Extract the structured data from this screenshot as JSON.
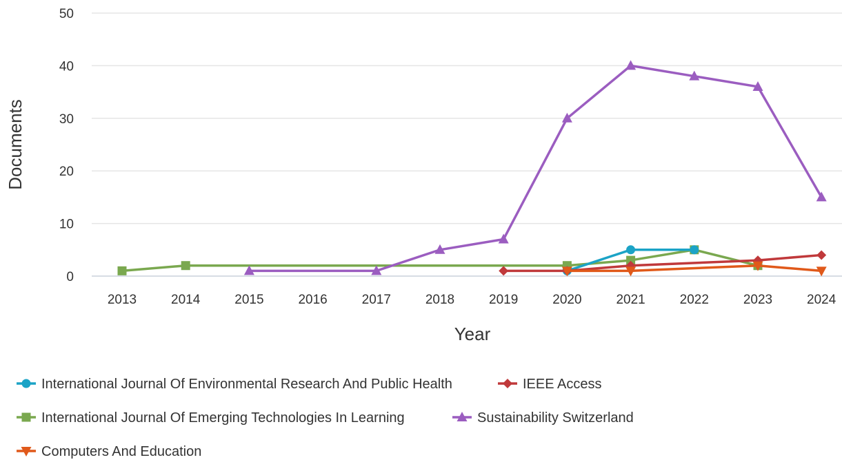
{
  "chart_data": {
    "type": "line",
    "xlabel": "Year",
    "ylabel": "Documents",
    "x": [
      "2013",
      "2014",
      "2015",
      "2016",
      "2017",
      "2018",
      "2019",
      "2020",
      "2021",
      "2022",
      "2023",
      "2024"
    ],
    "ylim": [
      0,
      50
    ],
    "yticks": [
      0,
      10,
      20,
      30,
      40,
      50
    ],
    "grid": true,
    "legend_position": "bottom",
    "series": [
      {
        "name": "International Journal Of Environmental Research And Public Health",
        "color": "#1ba3c6",
        "marker": "circle",
        "points": [
          [
            2020,
            1
          ],
          [
            2021,
            5
          ],
          [
            2022,
            5
          ]
        ]
      },
      {
        "name": "IEEE Access",
        "color": "#c0393b",
        "marker": "diamond",
        "points": [
          [
            2019,
            1
          ],
          [
            2020,
            1
          ],
          [
            2021,
            2
          ],
          [
            2023,
            3
          ],
          [
            2024,
            4
          ]
        ]
      },
      {
        "name": "International Journal Of Emerging Technologies In Learning",
        "color": "#7aa84f",
        "marker": "square",
        "points": [
          [
            2013,
            1
          ],
          [
            2014,
            2
          ],
          [
            2020,
            2
          ],
          [
            2021,
            3
          ],
          [
            2022,
            5
          ],
          [
            2023,
            2
          ]
        ]
      },
      {
        "name": "Sustainability Switzerland",
        "color": "#9b5dc0",
        "marker": "triangle-up",
        "points": [
          [
            2015,
            1
          ],
          [
            2017,
            1
          ],
          [
            2018,
            5
          ],
          [
            2019,
            7
          ],
          [
            2020,
            30
          ],
          [
            2021,
            40
          ],
          [
            2022,
            38
          ],
          [
            2023,
            36
          ],
          [
            2024,
            15
          ]
        ]
      },
      {
        "name": "Computers And Education",
        "color": "#e0591a",
        "marker": "triangle-down",
        "points": [
          [
            2020,
            1
          ],
          [
            2021,
            1
          ],
          [
            2023,
            2
          ],
          [
            2024,
            1
          ]
        ]
      }
    ]
  }
}
